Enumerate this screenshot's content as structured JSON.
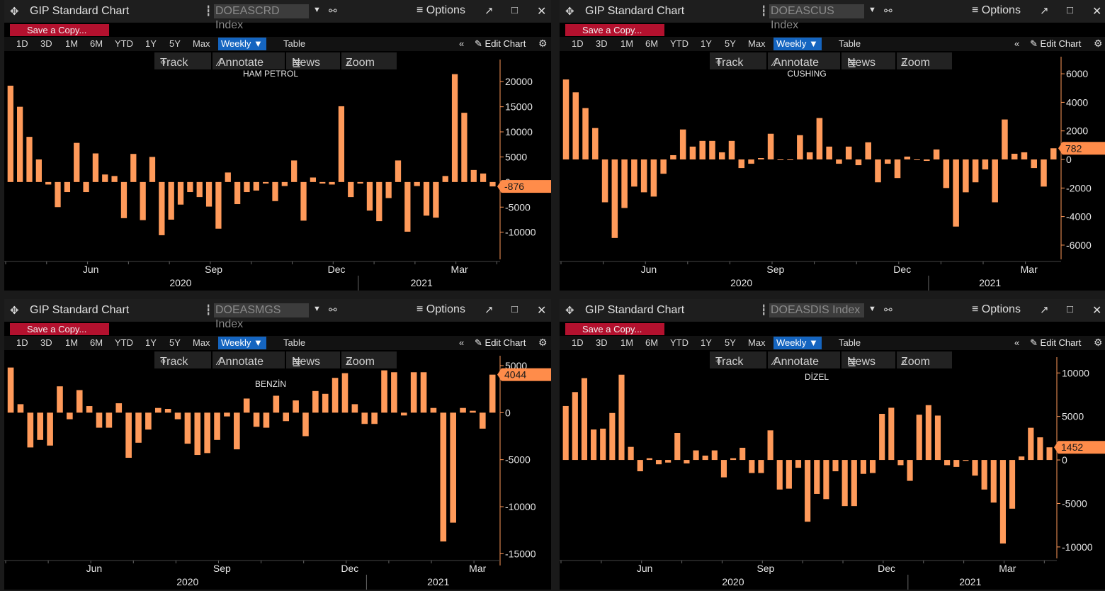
{
  "common": {
    "window_title": "GIP Standard Chart",
    "options_label": "Options",
    "save_copy_label": "Save a Copy...",
    "periods": [
      "1D",
      "3D",
      "1M",
      "6M",
      "YTD",
      "1Y",
      "5Y",
      "Max"
    ],
    "frequency_label": "Weekly",
    "table_label": "Table",
    "edit_chart_label": "Edit Chart",
    "tools": {
      "track": "Track",
      "annotate": "Annotate",
      "news": "News",
      "zoom": "Zoom"
    },
    "icons": [
      "move-icon",
      "grip-icon",
      "dropdown-icon",
      "link-icon",
      "menu-icon",
      "popout-icon",
      "maximize-icon",
      "close-icon",
      "collapse-icon",
      "pencil-icon",
      "gear-icon",
      "crosshair-icon",
      "annotate-icon",
      "news-icon",
      "magnifier-icon"
    ],
    "colors": {
      "bar": "#ff9a5a",
      "last_value_bg": "#ff8c4a",
      "weekly_bg": "#1565c0",
      "save_bg": "#b3112e"
    }
  },
  "chart_data": [
    {
      "type": "bar",
      "ticker": "DOEASCRD Index",
      "title": "HAM PETROL",
      "ylim": [
        -14000,
        23000
      ],
      "yticks": [
        -10000,
        -5000,
        0,
        5000,
        10000,
        15000,
        20000
      ],
      "ytick_labels": [
        "-10000",
        "-5000",
        "0",
        "5000",
        "10000",
        "15000",
        "20000"
      ],
      "last_value": -876,
      "last_value_label": "-876",
      "month_labels": [
        {
          "label": "Jun",
          "week": 9
        },
        {
          "label": "Sep",
          "week": 22
        },
        {
          "label": "Dec",
          "week": 35
        },
        {
          "label": "Mar",
          "week": 48
        }
      ],
      "year_labels": [
        {
          "label": "2020",
          "week": 18.5
        },
        {
          "label": "2021",
          "week": 44
        }
      ],
      "year_divider_week": 37.3,
      "values": [
        19200,
        15000,
        9000,
        4500,
        -500,
        -5000,
        -2000,
        7800,
        -2000,
        5700,
        1500,
        1200,
        -7200,
        5600,
        -7600,
        5000,
        -10600,
        -7500,
        -4500,
        -2000,
        -3000,
        -4900,
        -9300,
        1900,
        -4400,
        -2000,
        -1700,
        -300,
        -3800,
        -800,
        4300,
        -7700,
        900,
        -300,
        -500,
        15100,
        -3000,
        -300,
        -5700,
        -7800,
        -3200,
        4300,
        -9900,
        -800,
        -6700,
        -7100,
        1200,
        21500,
        13800,
        2400,
        1700,
        -876
      ]
    },
    {
      "type": "bar",
      "ticker": "DOEASCUS Index",
      "title": "CUSHING",
      "ylim": [
        -6500,
        6700
      ],
      "yticks": [
        -6000,
        -4000,
        -2000,
        0,
        2000,
        4000,
        6000
      ],
      "ytick_labels": [
        "-6000",
        "-4000",
        "-2000",
        "0",
        "2000",
        "4000",
        "6000"
      ],
      "last_value": 782,
      "last_value_label": "782",
      "month_labels": [
        {
          "label": "Jun",
          "week": 9
        },
        {
          "label": "Sep",
          "week": 22
        },
        {
          "label": "Dec",
          "week": 35
        },
        {
          "label": "Mar",
          "week": 48
        }
      ],
      "year_labels": [
        {
          "label": "2020",
          "week": 18.5
        },
        {
          "label": "2021",
          "week": 44
        }
      ],
      "year_divider_week": 37.7,
      "values": [
        5600,
        4700,
        3600,
        2200,
        -3000,
        -5500,
        -3400,
        -1900,
        -2300,
        -2600,
        -1000,
        300,
        2100,
        900,
        1300,
        1300,
        500,
        1300,
        -600,
        -300,
        100,
        1800,
        0,
        0,
        1700,
        500,
        2900,
        900,
        -300,
        900,
        -400,
        1200,
        -1600,
        -300,
        -1300,
        200,
        0,
        -100,
        700,
        -2000,
        -4700,
        -2300,
        -1600,
        -700,
        -3000,
        2800,
        400,
        500,
        -600,
        -1900,
        782
      ]
    },
    {
      "type": "bar",
      "ticker": "DOEASMGS Index",
      "title": "BENZİN",
      "ylim": [
        -15500,
        5300
      ],
      "yticks": [
        -15000,
        -10000,
        -5000,
        0,
        5000
      ],
      "ytick_labels": [
        "-15000",
        "-10000",
        "-5000",
        "0",
        "5000"
      ],
      "last_value": 4044,
      "last_value_label": "4044",
      "month_labels": [
        {
          "label": "Jun",
          "week": 9
        },
        {
          "label": "Sep",
          "week": 22
        },
        {
          "label": "Dec",
          "week": 35
        },
        {
          "label": "Mar",
          "week": 48
        }
      ],
      "year_labels": [
        {
          "label": "2020",
          "week": 18.5
        },
        {
          "label": "2021",
          "week": 44
        }
      ],
      "year_divider_week": 36.7,
      "values": [
        4800,
        900,
        -3700,
        -2900,
        -3500,
        2800,
        -700,
        2400,
        700,
        -1600,
        -1600,
        1000,
        -4800,
        -3200,
        -1800,
        500,
        400,
        -700,
        -3300,
        -4500,
        -4300,
        -2900,
        -400,
        -3900,
        1500,
        -1500,
        -1600,
        1800,
        -900,
        1300,
        -2500,
        2300,
        2000,
        3700,
        4200,
        900,
        -1200,
        -1200,
        4500,
        4300,
        -300,
        4300,
        4300,
        500,
        -13700,
        -11700,
        500,
        200,
        -1700,
        4044
      ]
    },
    {
      "type": "bar",
      "ticker": "DOEASDIS Index",
      "title": "DİZEL",
      "ylim": [
        -10500,
        11000
      ],
      "yticks": [
        -10000,
        -5000,
        0,
        5000,
        10000
      ],
      "ytick_labels": [
        "-10000",
        "-5000",
        "0",
        "5000",
        "10000"
      ],
      "last_value": 1452,
      "last_value_label": "1452",
      "month_labels": [
        {
          "label": "Jun",
          "week": 9
        },
        {
          "label": "Sep",
          "week": 22
        },
        {
          "label": "Dec",
          "week": 35
        },
        {
          "label": "Mar",
          "week": 48
        }
      ],
      "year_labels": [
        {
          "label": "2020",
          "week": 18.5
        },
        {
          "label": "2021",
          "week": 44
        }
      ],
      "year_divider_week": 37.3,
      "values": [
        6200,
        7800,
        9400,
        3500,
        3600,
        5400,
        9800,
        1500,
        -1300,
        200,
        -500,
        -300,
        3100,
        -400,
        1100,
        500,
        1100,
        -2000,
        200,
        1400,
        -1500,
        -1500,
        3400,
        -3400,
        -3300,
        -900,
        -7100,
        -3900,
        -4500,
        -1300,
        -5300,
        -5300,
        -1600,
        -1500,
        5300,
        6000,
        -600,
        -2400,
        5200,
        6300,
        5100,
        -600,
        -800,
        -100,
        -1800,
        -3400,
        -4900,
        -9600,
        -5600,
        400,
        3700,
        2600,
        1452
      ]
    }
  ]
}
